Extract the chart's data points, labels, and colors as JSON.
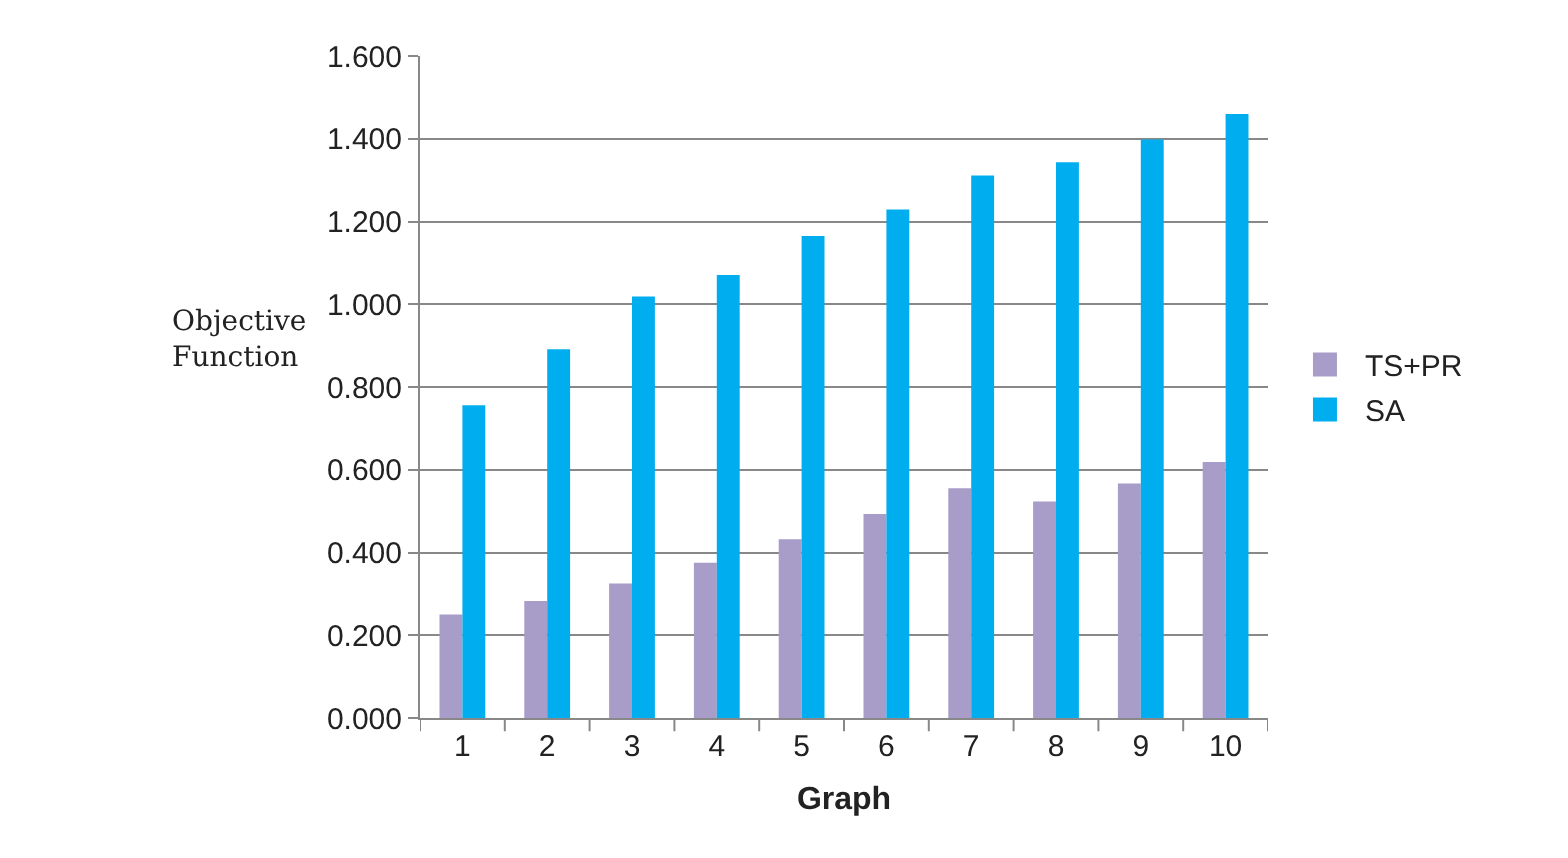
{
  "chart_data": {
    "type": "bar",
    "xlabel": "Graph",
    "ylabel": "Objective Function",
    "categories": [
      "1",
      "2",
      "3",
      "4",
      "5",
      "6",
      "7",
      "8",
      "9",
      "10"
    ],
    "series": [
      {
        "name": "TS+PR",
        "color": "#a89cc8",
        "values": [
          0.25,
          0.283,
          0.325,
          0.375,
          0.432,
          0.493,
          0.555,
          0.523,
          0.567,
          0.619
        ]
      },
      {
        "name": "SA",
        "color": "#00aeef",
        "values": [
          0.756,
          0.891,
          1.019,
          1.071,
          1.165,
          1.229,
          1.311,
          1.343,
          1.398,
          1.46
        ]
      }
    ],
    "ylim": [
      0,
      1.6
    ],
    "yticks": [
      {
        "value": 0,
        "label": "0.000"
      },
      {
        "value": 0.2,
        "label": "0.200"
      },
      {
        "value": 0.4,
        "label": "0.400"
      },
      {
        "value": 0.6,
        "label": "0.600"
      },
      {
        "value": 0.8,
        "label": "0.800"
      },
      {
        "value": 1,
        "label": "1.000"
      },
      {
        "value": 1.2,
        "label": "1.200"
      },
      {
        "value": 1.4,
        "label": "1.400"
      },
      {
        "value": 1.6,
        "label": "1.600"
      }
    ],
    "grid": "y",
    "legend": "right"
  }
}
